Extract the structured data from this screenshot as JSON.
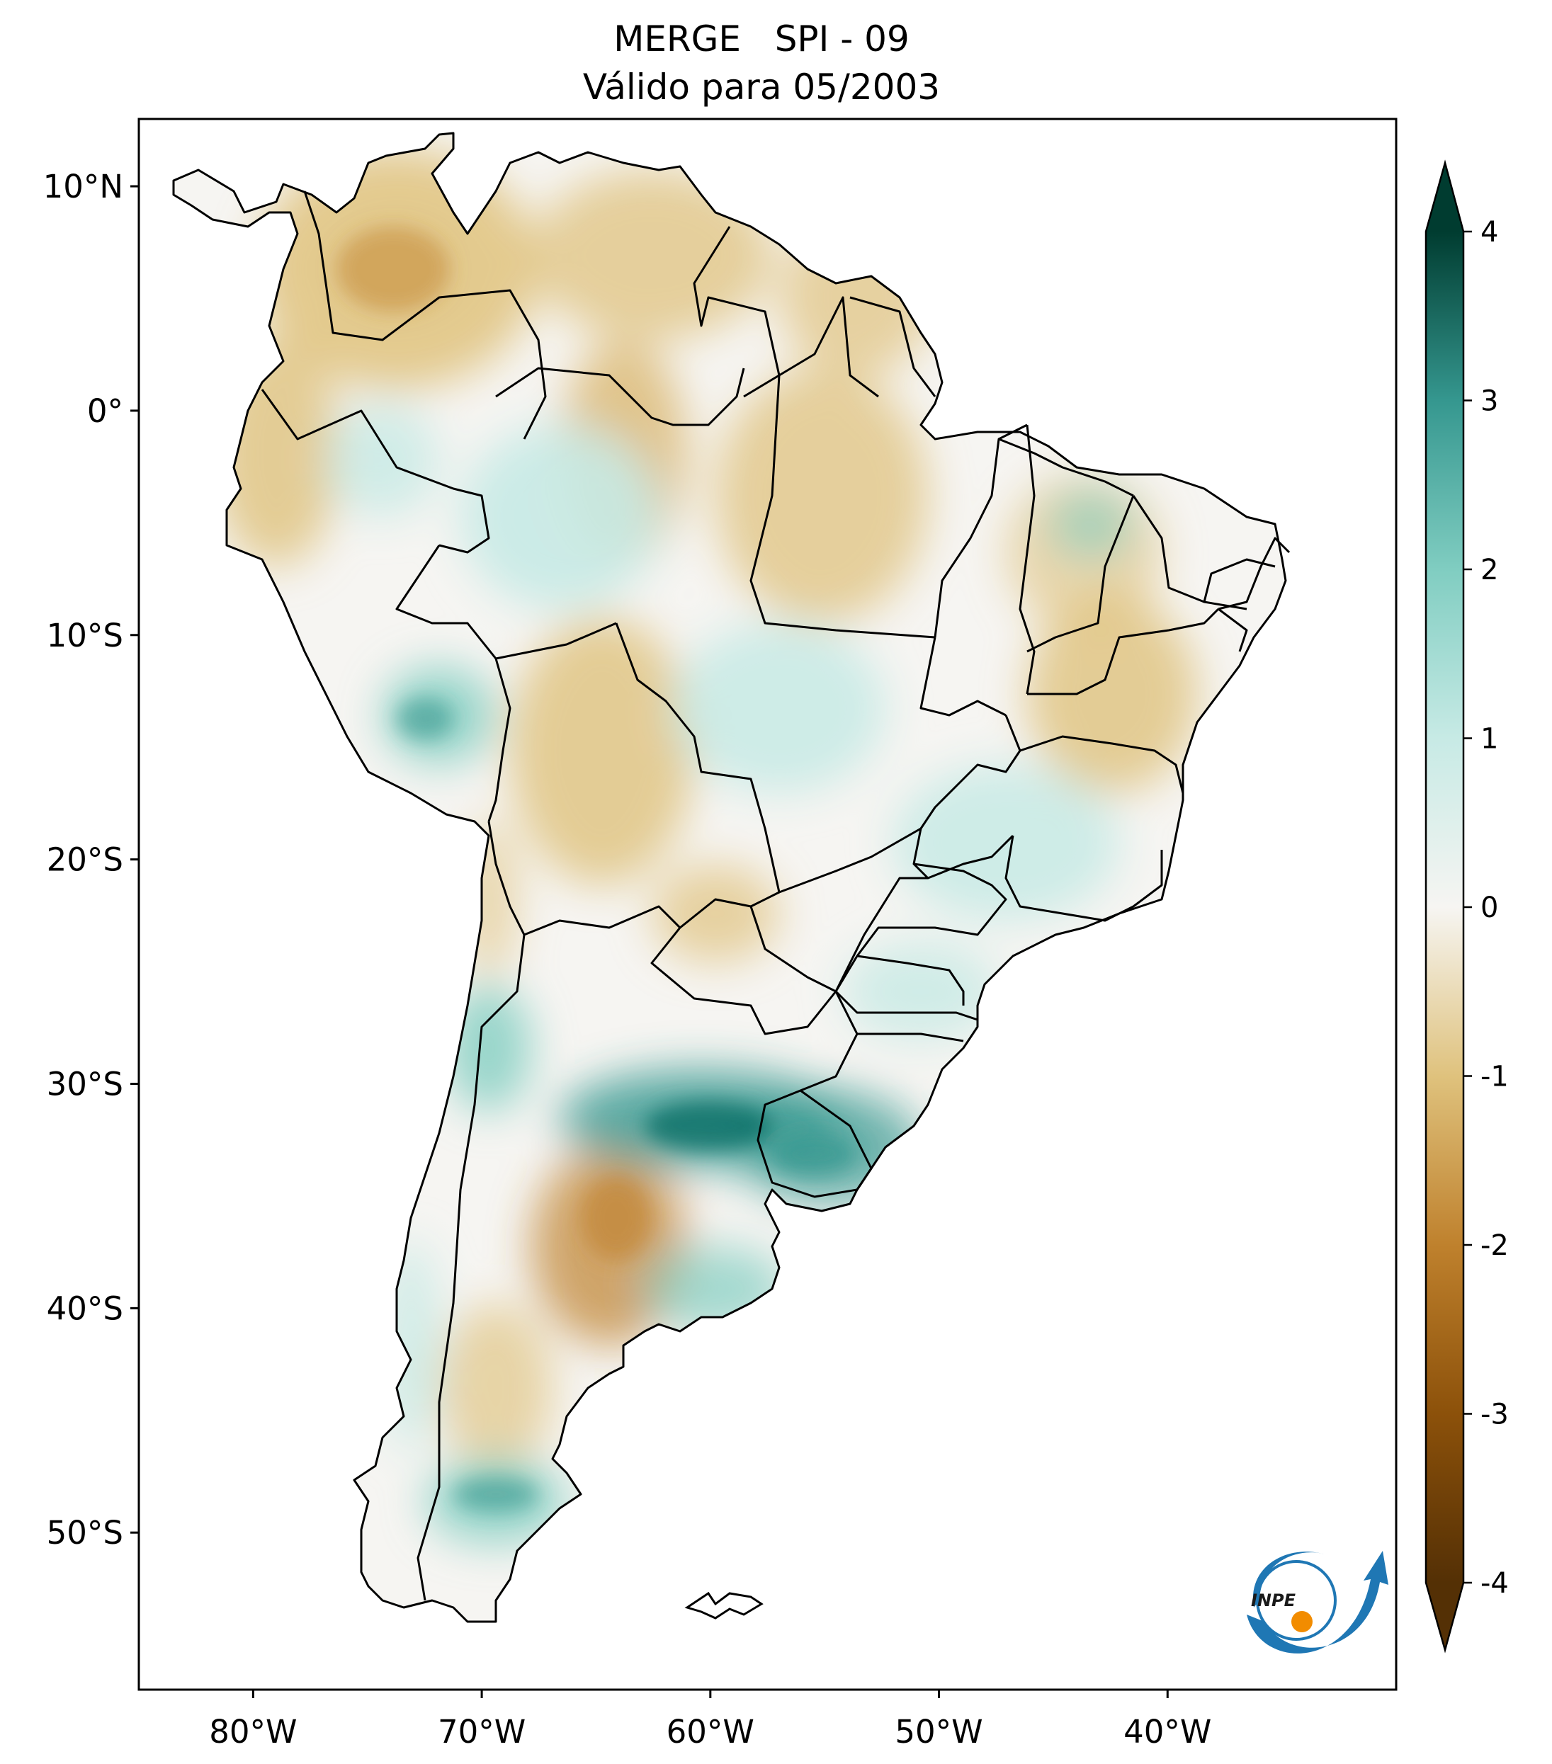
{
  "title": {
    "line1": "MERGE   SPI - 09",
    "line2": "Válido para 05/2003"
  },
  "map": {
    "lon_range": [
      -85,
      -30
    ],
    "lat_range": [
      -57,
      13
    ],
    "lon_ticks": [
      {
        "value": -80,
        "label": "80°W"
      },
      {
        "value": -70,
        "label": "70°W"
      },
      {
        "value": -60,
        "label": "60°W"
      },
      {
        "value": -50,
        "label": "50°W"
      },
      {
        "value": -40,
        "label": "40°W"
      }
    ],
    "lat_ticks": [
      {
        "value": 10,
        "label": "10°N"
      },
      {
        "value": 0,
        "label": "0°"
      },
      {
        "value": -10,
        "label": "10°S"
      },
      {
        "value": -20,
        "label": "20°S"
      },
      {
        "value": -30,
        "label": "30°S"
      },
      {
        "value": -40,
        "label": "40°S"
      },
      {
        "value": -50,
        "label": "50°S"
      }
    ]
  },
  "colorbar": {
    "range": [
      -4,
      4
    ],
    "extend": "both",
    "ticks": [
      {
        "value": 4,
        "label": "4"
      },
      {
        "value": 3,
        "label": "3"
      },
      {
        "value": 2,
        "label": "2"
      },
      {
        "value": 1,
        "label": "1"
      },
      {
        "value": 0,
        "label": "0"
      },
      {
        "value": -1,
        "label": "-1"
      },
      {
        "value": -2,
        "label": "-2"
      },
      {
        "value": -3,
        "label": "-3"
      },
      {
        "value": -4,
        "label": "-4"
      }
    ],
    "colors": {
      "min": "#543005",
      "dry_strong": "#8c510a",
      "dry": "#bf812d",
      "dry_light": "#dfc27d",
      "neutral": "#f6f5f2",
      "wet_light": "#c7eae5",
      "wet": "#80cdc1",
      "wet_strong": "#35978f",
      "max": "#003c30"
    }
  },
  "logo": {
    "text": "INPE",
    "colors": {
      "arc": "#1f77b4",
      "sun": "#f28c00"
    }
  }
}
